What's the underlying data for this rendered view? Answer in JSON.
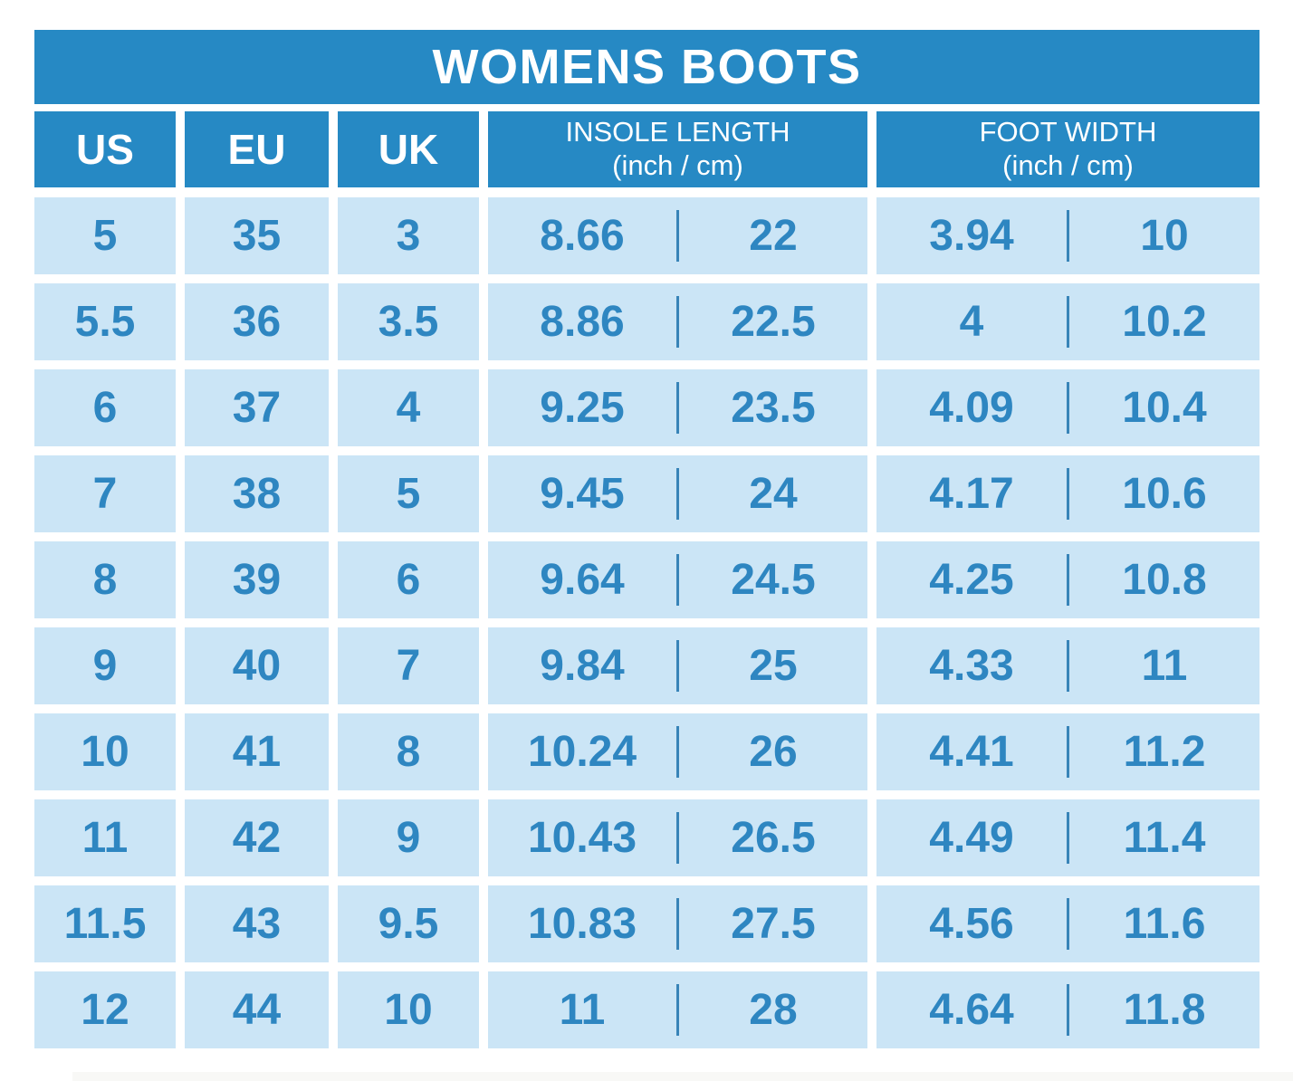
{
  "title": "WOMENS BOOTS",
  "colors": {
    "header_blue": "#2689c4",
    "cell_blue": "#cbe5f6",
    "text_blue": "#2e86c1",
    "divider_blue": "#3884b8"
  },
  "header": {
    "us": "US",
    "eu": "EU",
    "uk": "UK",
    "insole_line1": "INSOLE LENGTH",
    "insole_line2": "(inch / cm)",
    "foot_line1": "FOOT WIDTH",
    "foot_line2": "(inch / cm)"
  },
  "chart_data": {
    "type": "table",
    "title": "WOMENS BOOTS",
    "columns": [
      "US",
      "EU",
      "UK",
      "INSOLE LENGTH (inch / cm)",
      "FOOT WIDTH (inch / cm)"
    ],
    "rows": [
      {
        "us": "5",
        "eu": "35",
        "uk": "3",
        "insole_inch": "8.66",
        "insole_cm": "22",
        "foot_inch": "3.94",
        "foot_cm": "10"
      },
      {
        "us": "5.5",
        "eu": "36",
        "uk": "3.5",
        "insole_inch": "8.86",
        "insole_cm": "22.5",
        "foot_inch": "4",
        "foot_cm": "10.2"
      },
      {
        "us": "6",
        "eu": "37",
        "uk": "4",
        "insole_inch": "9.25",
        "insole_cm": "23.5",
        "foot_inch": "4.09",
        "foot_cm": "10.4"
      },
      {
        "us": "7",
        "eu": "38",
        "uk": "5",
        "insole_inch": "9.45",
        "insole_cm": "24",
        "foot_inch": "4.17",
        "foot_cm": "10.6"
      },
      {
        "us": "8",
        "eu": "39",
        "uk": "6",
        "insole_inch": "9.64",
        "insole_cm": "24.5",
        "foot_inch": "4.25",
        "foot_cm": "10.8"
      },
      {
        "us": "9",
        "eu": "40",
        "uk": "7",
        "insole_inch": "9.84",
        "insole_cm": "25",
        "foot_inch": "4.33",
        "foot_cm": "11"
      },
      {
        "us": "10",
        "eu": "41",
        "uk": "8",
        "insole_inch": "10.24",
        "insole_cm": "26",
        "foot_inch": "4.41",
        "foot_cm": "11.2"
      },
      {
        "us": "11",
        "eu": "42",
        "uk": "9",
        "insole_inch": "10.43",
        "insole_cm": "26.5",
        "foot_inch": "4.49",
        "foot_cm": "11.4"
      },
      {
        "us": "11.5",
        "eu": "43",
        "uk": "9.5",
        "insole_inch": "10.83",
        "insole_cm": "27.5",
        "foot_inch": "4.56",
        "foot_cm": "11.6"
      },
      {
        "us": "12",
        "eu": "44",
        "uk": "10",
        "insole_inch": "11",
        "insole_cm": "28",
        "foot_inch": "4.64",
        "foot_cm": "11.8"
      }
    ]
  }
}
